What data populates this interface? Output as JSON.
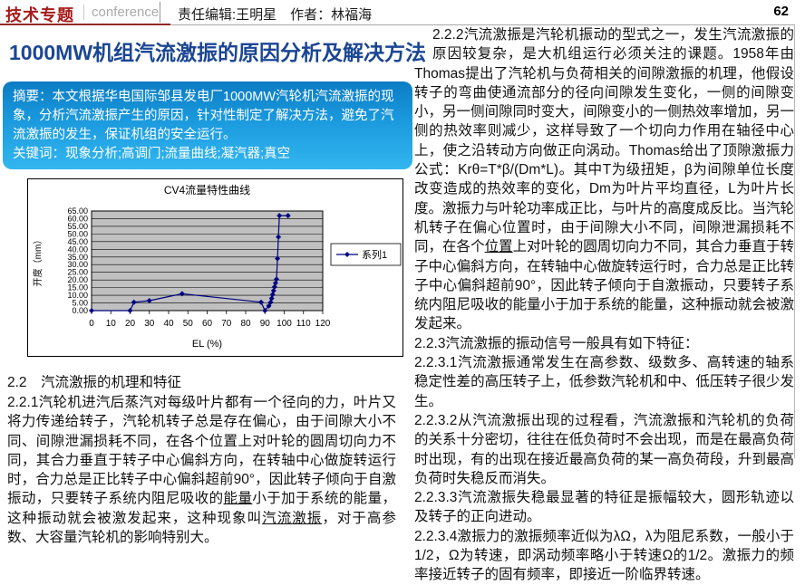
{
  "header": {
    "topic": "技术专题",
    "topic_sub": "conference",
    "editor": "责任编辑:王明星　作者：林福海",
    "page_number": "62"
  },
  "article": {
    "title": "1000MW机组汽流激振的原因分析及解决方法",
    "abstract_label": "摘要：",
    "abstract_text": "本文根据华电国际邹县发电厂1000MW汽轮机汽流激振的现象，分析汽流激振产生的原因，针对性制定了解决方法，避免了汽流激振的发生，保证机组的安全运行。",
    "keywords_label": "关键词：",
    "keywords_text": "现象分析;高调门;流量曲线;凝汽器;真空"
  },
  "left_column": {
    "heading": "2.2　汽流激振的机理和特征",
    "paragraphs": [
      {
        "segments": [
          {
            "t": "2.2.1汽轮机进汽后蒸汽对每级叶片都有一个径向的力，叶片又将力传递给转子，汽轮机转子总是存在偏心，由于间隙大小不同、间隙泄漏损耗不同，在各个位置上对叶轮的圆周切向力不同，其合力垂直于转子中心偏斜方向，在转轴中心做旋转运行时，合力总是正比转子中心偏斜超前90°，因此转子倾向于自激振动，只要转子系统内阻尼吸收的"
          },
          {
            "t": "能量",
            "u": true
          },
          {
            "t": "小于加于系统的能量，这种振动就会被激发起来，这种现象叫"
          },
          {
            "t": "汽流激振",
            "u": true
          },
          {
            "t": "，对于高参数、大容量汽轮机的影响特别大。"
          }
        ]
      }
    ]
  },
  "right_column": {
    "paragraphs": [
      {
        "segments": [
          {
            "t": "2.2.2汽流激振是汽轮机振动的型式之一，发生汽流激振的原因较复杂，是大机组运行必须关注的课题。1958年由Thomas提出了汽轮机与负荷相关的间隙激振的机理，他假设转子的弯曲使通流部分的径向间隙发生变化，一侧的间隙变小，另一侧间隙同时变大，间隙变小的一侧热效率增加，另一侧的热效率则减少，这样导致了一个切向力作用在轴径中心上，使之沿转动方向做正向涡动。Thomas给出了顶隙激振力公式：Krθ=T*β/(Dm*L)。其中T为级扭矩，β为间隙单位长度改变造成的热效率的变化，Dm为叶片平均直径，L为叶片长度。激振力与叶轮功率成正比，与叶片的高度成反比。当汽轮机转子在偏心位置时，由于间隙大小不同，间隙泄漏损耗不同，在各个"
          },
          {
            "t": "位置",
            "u": true
          },
          {
            "t": "上对叶轮的圆周切向力不同，其合力垂直于转子中心偏斜方向，在转轴中心做旋转运行时，合力总是正比转子中心偏斜超前90°，因此转子倾向于自激振动，只要转子系统内阻尼吸收的能量小于加于系统的能量，这种振动就会被激发起来。"
          }
        ]
      },
      {
        "segments": [
          {
            "t": "2.2.3汽流激振的振动信号一般具有如下特征："
          }
        ]
      },
      {
        "segments": [
          {
            "t": "2.2.3.1汽流激振通常发生在高参数、级数多、高转速的轴系稳定性差的高压转子上，低参数汽轮机和中、低压转子很少发生。"
          }
        ]
      },
      {
        "segments": [
          {
            "t": "2.2.3.2从汽流激振出现的过程看，汽流激振和汽轮机的负荷的关系十分密切，往往在低负荷时不会出现，而是在最高负荷时出现，有的出现在接近最高负荷的某一高负荷段，升到最高负荷时失稳反而消失。"
          }
        ]
      },
      {
        "segments": [
          {
            "t": "2.2.3.3汽流激振失稳最显著的特征是振幅较大，圆形轨迹以及转子的正向进动。"
          }
        ]
      },
      {
        "segments": [
          {
            "t": "2.2.3.4激振力的激振频率近似为λΩ，λ为阻尼系数，一般小于1/2，Ω为转速，即涡动频率略小于转速Ω的1/2。激振力的频率接近转子的固有频率，即接近一阶临界转速。"
          }
        ]
      }
    ]
  },
  "chart_data": {
    "type": "line",
    "title": "CV4流量特性曲线",
    "xlabel": "EL (%)",
    "ylabel": "开度（mm）",
    "xlim": [
      0,
      120
    ],
    "xtick_step": 10,
    "ylim": [
      0,
      65
    ],
    "ytick_step": 5,
    "grid": "horizontal",
    "plot_bg": "#c0c0c0",
    "legend_position": "right",
    "series": [
      {
        "name": "系列1",
        "color": "#000080",
        "marker": "diamond",
        "points": [
          [
            0,
            0
          ],
          [
            20,
            0
          ],
          [
            22,
            5.5
          ],
          [
            30,
            6.5
          ],
          [
            47,
            11
          ],
          [
            88,
            5.5
          ],
          [
            90,
            0
          ],
          [
            92,
            3
          ],
          [
            93,
            5.5
          ],
          [
            93.5,
            8
          ],
          [
            94,
            10.5
          ],
          [
            94.5,
            13
          ],
          [
            95,
            15.5
          ],
          [
            95.5,
            18
          ],
          [
            96,
            20.5
          ],
          [
            96.5,
            34
          ],
          [
            97,
            48
          ],
          [
            97.5,
            62
          ],
          [
            102,
            62
          ]
        ]
      }
    ]
  }
}
